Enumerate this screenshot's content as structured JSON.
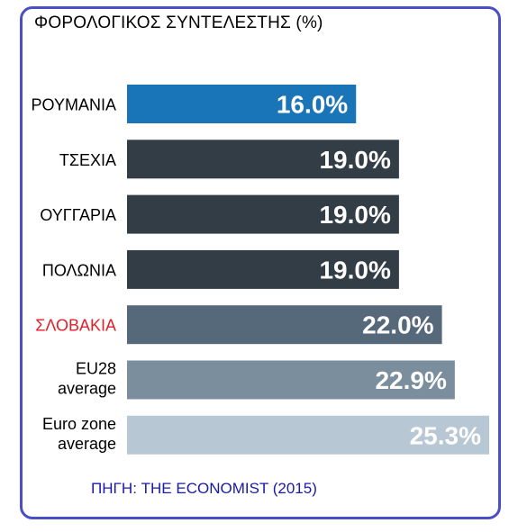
{
  "title": "ΦΟΡΟΛΟΓΙΚΟΣ ΣΥΝΤΕΛΕΣΤΗΣ (%)",
  "source": "ΠΗΓΗ:  THE ECONOMIST (2015)",
  "chart_data": {
    "type": "bar",
    "orientation": "horizontal",
    "title": "ΦΟΡΟΛΟΓΙΚΟΣ ΣΥΝΤΕΛΕΣΤΗΣ (%)",
    "categories": [
      [
        "ΡΟΥΜΑΝΙΑ"
      ],
      [
        "ΤΣΕΧΙΑ"
      ],
      [
        "ΟΥΓΓΑΡΙΑ"
      ],
      [
        "ΠΟΛΩΝΙΑ"
      ],
      [
        "ΣΛΟΒΑΚΙΑ"
      ],
      [
        "EU28",
        "average"
      ],
      [
        "Euro zone",
        "average"
      ]
    ],
    "values": [
      16.0,
      19.0,
      19.0,
      19.0,
      22.0,
      22.9,
      25.3
    ],
    "value_labels": [
      "16.0%",
      "19.0%",
      "19.0%",
      "19.0%",
      "22.0%",
      "22.9%",
      "25.3%"
    ],
    "bar_colors": [
      "#1a74b8",
      "#333d46",
      "#333d46",
      "#333d46",
      "#56697a",
      "#7b8e9e",
      "#b8c7d4"
    ],
    "label_colors": [
      "#000000",
      "#000000",
      "#000000",
      "#000000",
      "#e0202a",
      "#000000",
      "#000000"
    ],
    "xlim": [
      0,
      25.3
    ],
    "grid": false,
    "legend": "none"
  }
}
